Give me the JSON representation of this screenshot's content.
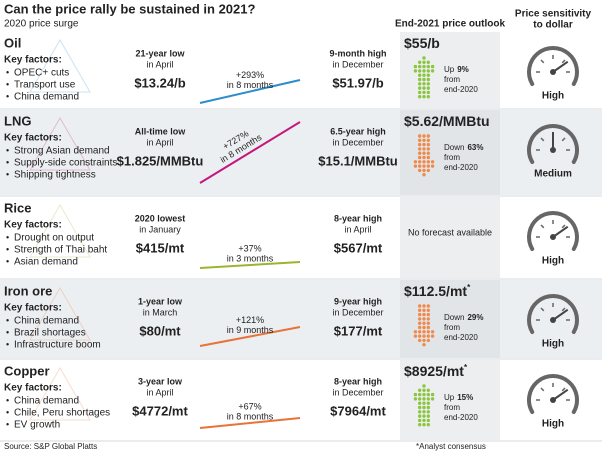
{
  "header": {
    "title": "Can the price rally be sustained in 2021?",
    "surge": "2020 price surge",
    "outlook": "End-2021 price outlook",
    "sensitivity": [
      "Price sensitivity",
      "to dollar"
    ]
  },
  "rows": [
    {
      "name": "Oil",
      "color": "#2b8ecb",
      "factors_label": "Key factors:",
      "factors": [
        "OPEC+ cuts",
        "Transport use",
        "China demand"
      ],
      "low_label": "21-year low",
      "low_when": "in April",
      "low_price": "$13.24/b",
      "change": "+293%",
      "change_period": "in 8 months",
      "high_label": "9-month high",
      "high_when": "in December",
      "high_price": "$51.97/b",
      "outlook_price": "$55/b",
      "outlook_dir": "Up",
      "outlook_pct": "9%",
      "outlook_from": "from",
      "outlook_base": "end-2020",
      "sensitivity": "High"
    },
    {
      "name": "LNG",
      "color": "#c4177c",
      "factors_label": "Key factors:",
      "factors": [
        "Strong Asian demand",
        "Supply-side constraints",
        "Shipping tightness"
      ],
      "low_label": "All-time low",
      "low_when": "in April",
      "low_price": "$1.825/MMBtu",
      "change": "+727%",
      "change_period": "in 8 months",
      "high_label": "6.5-year high",
      "high_when": "in December",
      "high_price": "$15.1/MMBtu",
      "outlook_price": "$5.62/MMBtu",
      "outlook_dir": "Down",
      "outlook_pct": "63%",
      "outlook_from": "from",
      "outlook_base": "end-2020",
      "sensitivity": "Medium"
    },
    {
      "name": "Rice",
      "color": "#9ab533",
      "factors_label": "Key factors:",
      "factors": [
        "Drought on output",
        "Strength of Thai baht",
        "Asian demand"
      ],
      "low_label": "2020 lowest",
      "low_when": "in January",
      "low_price": "$415/mt",
      "change": "+37%",
      "change_period": "in 3 months",
      "high_label": "8-year high",
      "high_when": "in April",
      "high_price": "$567/mt",
      "outlook_none": "No forecast available",
      "sensitivity": "High"
    },
    {
      "name": "Iron ore",
      "color": "#e8733a",
      "factors_label": "Key factors:",
      "factors": [
        "China demand",
        "Brazil shortages",
        "Infrastructure boom"
      ],
      "low_label": "1-year low",
      "low_when": "in March",
      "low_price": "$80/mt",
      "change": "+121%",
      "change_period": "in 9 months",
      "high_label": "9-year high",
      "high_when": "in December",
      "high_price": "$177/mt",
      "outlook_price": "$112.5/mt",
      "outlook_mark": "*",
      "outlook_dir": "Down",
      "outlook_pct": "29%",
      "outlook_from": "from",
      "outlook_base": "end-2020",
      "sensitivity": "High"
    },
    {
      "name": "Copper",
      "color": "#e8733a",
      "factors_label": "Key factors:",
      "factors": [
        "China demand",
        "Chile, Peru shortages",
        "EV growth"
      ],
      "low_label": "3-year low",
      "low_when": "in April",
      "low_price": "$4772/mt",
      "change": "+67%",
      "change_period": "in 8 months",
      "high_label": "8-year high",
      "high_when": "in December",
      "high_price": "$7964/mt",
      "outlook_price": "$8925/mt",
      "outlook_mark": "*",
      "outlook_dir": "Up",
      "outlook_pct": "15%",
      "outlook_from": "from",
      "outlook_base": "end-2020",
      "sensitivity": "High"
    }
  ],
  "footer": {
    "source": "Source: S&P Global Platts",
    "note": "*Analyst consensus"
  }
}
